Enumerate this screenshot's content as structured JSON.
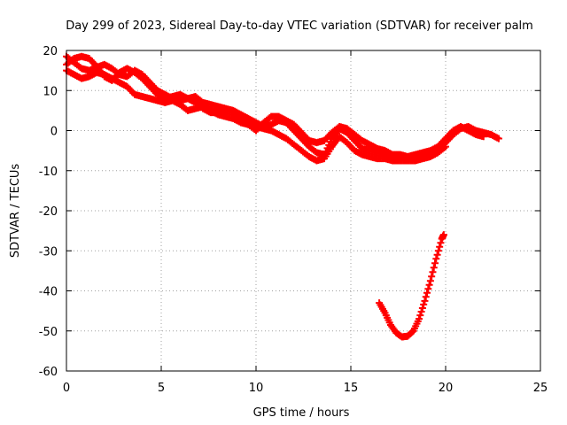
{
  "chart_data": {
    "type": "scatter",
    "title": "Day 299 of 2023, Sidereal Day-to-day VTEC variation (SDTVAR) for receiver palm",
    "xlabel": "GPS time / hours",
    "ylabel": "SDTVAR / TECUs",
    "xlim": [
      0,
      25
    ],
    "ylim": [
      -60,
      20
    ],
    "x_ticks": [
      0,
      5,
      10,
      15,
      20,
      25
    ],
    "y_ticks": [
      -60,
      -50,
      -40,
      -30,
      -20,
      -10,
      0,
      10,
      20
    ],
    "grid": true,
    "marker": "plus",
    "series_color": "#ff0000",
    "series": [
      {
        "name": "track-a",
        "points": [
          [
            0.0,
            18.5
          ],
          [
            0.4,
            17.0
          ],
          [
            0.8,
            15.5
          ],
          [
            1.2,
            15.0
          ],
          [
            1.6,
            15.8
          ],
          [
            2.0,
            16.5
          ],
          [
            2.4,
            15.5
          ],
          [
            2.8,
            14.0
          ],
          [
            3.2,
            13.5
          ],
          [
            3.6,
            15.0
          ],
          [
            4.0,
            14.0
          ],
          [
            4.4,
            12.0
          ],
          [
            4.8,
            10.0
          ],
          [
            5.2,
            9.0
          ],
          [
            5.6,
            8.0
          ],
          [
            6.0,
            7.5
          ],
          [
            6.4,
            8.0
          ],
          [
            6.8,
            8.5
          ],
          [
            7.2,
            7.0
          ],
          [
            7.6,
            6.5
          ],
          [
            8.0,
            6.0
          ],
          [
            8.4,
            5.5
          ],
          [
            8.8,
            5.0
          ],
          [
            9.2,
            4.0
          ],
          [
            9.6,
            3.0
          ],
          [
            10.0,
            2.0
          ],
          [
            10.4,
            1.0
          ],
          [
            10.8,
            1.5
          ],
          [
            11.2,
            2.5
          ],
          [
            11.6,
            2.0
          ],
          [
            12.0,
            0.0
          ],
          [
            12.4,
            -2.0
          ],
          [
            12.8,
            -4.0
          ],
          [
            13.2,
            -5.5
          ],
          [
            13.6,
            -6.0
          ],
          [
            14.0,
            -2.0
          ],
          [
            14.4,
            0.5
          ],
          [
            14.8,
            -0.5
          ],
          [
            15.2,
            -2.5
          ],
          [
            15.6,
            -4.5
          ],
          [
            16.0,
            -5.0
          ],
          [
            16.4,
            -5.5
          ],
          [
            16.8,
            -6.0
          ],
          [
            17.2,
            -6.5
          ],
          [
            17.6,
            -6.5
          ],
          [
            18.0,
            -7.0
          ],
          [
            18.4,
            -7.0
          ],
          [
            18.8,
            -6.5
          ],
          [
            19.2,
            -6.0
          ],
          [
            19.6,
            -5.0
          ],
          [
            20.0,
            -3.0
          ],
          [
            20.4,
            -1.0
          ],
          [
            20.8,
            0.5
          ],
          [
            21.2,
            1.0
          ],
          [
            21.6,
            0.0
          ],
          [
            22.0,
            -0.5
          ],
          [
            22.4,
            -1.0
          ],
          [
            22.8,
            -2.0
          ]
        ]
      },
      {
        "name": "track-b",
        "points": [
          [
            0.0,
            15.0
          ],
          [
            0.4,
            14.0
          ],
          [
            0.8,
            13.0
          ],
          [
            1.2,
            13.5
          ],
          [
            1.6,
            14.5
          ],
          [
            2.0,
            14.0
          ],
          [
            2.4,
            13.0
          ],
          [
            2.8,
            12.0
          ],
          [
            3.2,
            11.0
          ],
          [
            3.6,
            9.0
          ],
          [
            4.0,
            8.5
          ],
          [
            4.4,
            8.0
          ],
          [
            4.8,
            7.5
          ],
          [
            5.2,
            7.0
          ],
          [
            5.6,
            7.5
          ],
          [
            6.0,
            6.5
          ],
          [
            6.4,
            5.0
          ],
          [
            6.8,
            5.5
          ],
          [
            7.2,
            6.0
          ],
          [
            7.6,
            5.0
          ],
          [
            8.0,
            4.0
          ],
          [
            8.4,
            3.5
          ],
          [
            8.8,
            3.0
          ],
          [
            9.2,
            2.0
          ],
          [
            9.6,
            1.5
          ],
          [
            10.0,
            1.0
          ],
          [
            10.4,
            0.5
          ],
          [
            10.8,
            0.0
          ],
          [
            11.2,
            -1.0
          ],
          [
            11.6,
            -2.0
          ],
          [
            12.0,
            -3.5
          ],
          [
            12.4,
            -5.0
          ],
          [
            12.8,
            -6.5
          ],
          [
            13.2,
            -7.5
          ],
          [
            13.6,
            -7.0
          ],
          [
            14.0,
            -4.0
          ],
          [
            14.4,
            -1.5
          ],
          [
            14.8,
            -3.0
          ],
          [
            15.2,
            -5.0
          ],
          [
            15.6,
            -6.0
          ],
          [
            16.0,
            -6.5
          ],
          [
            16.4,
            -7.0
          ],
          [
            16.8,
            -7.0
          ],
          [
            17.2,
            -7.5
          ],
          [
            17.6,
            -7.5
          ],
          [
            18.0,
            -7.5
          ],
          [
            18.4,
            -7.5
          ],
          [
            18.8,
            -7.0
          ],
          [
            19.2,
            -6.5
          ],
          [
            19.6,
            -5.5
          ],
          [
            20.0,
            -4.0
          ]
        ]
      },
      {
        "name": "track-c",
        "points": [
          [
            0.0,
            16.5
          ],
          [
            0.4,
            18.0
          ],
          [
            0.8,
            18.5
          ],
          [
            1.2,
            18.0
          ],
          [
            1.6,
            16.0
          ],
          [
            2.0,
            13.5
          ],
          [
            2.4,
            12.5
          ],
          [
            2.8,
            14.5
          ],
          [
            3.2,
            15.5
          ],
          [
            3.6,
            14.5
          ],
          [
            4.0,
            13.0
          ],
          [
            4.4,
            11.0
          ],
          [
            4.8,
            9.0
          ],
          [
            5.2,
            8.0
          ],
          [
            5.6,
            8.5
          ],
          [
            6.0,
            9.0
          ],
          [
            6.4,
            8.0
          ],
          [
            6.8,
            7.0
          ],
          [
            7.2,
            5.5
          ],
          [
            7.6,
            4.5
          ],
          [
            8.0,
            4.5
          ],
          [
            8.4,
            5.0
          ],
          [
            8.8,
            4.5
          ],
          [
            9.2,
            3.0
          ],
          [
            9.6,
            1.5
          ],
          [
            10.0,
            0.0
          ],
          [
            10.4,
            2.0
          ],
          [
            10.8,
            3.5
          ],
          [
            11.2,
            3.5
          ],
          [
            11.6,
            2.5
          ],
          [
            12.0,
            1.5
          ],
          [
            12.4,
            -0.5
          ],
          [
            12.8,
            -2.5
          ],
          [
            13.2,
            -3.0
          ],
          [
            13.6,
            -2.5
          ],
          [
            14.0,
            -0.5
          ],
          [
            14.4,
            1.0
          ],
          [
            14.8,
            0.5
          ],
          [
            15.2,
            -1.0
          ],
          [
            15.6,
            -2.5
          ],
          [
            16.0,
            -3.5
          ],
          [
            16.4,
            -4.5
          ],
          [
            16.8,
            -5.0
          ],
          [
            17.2,
            -6.0
          ],
          [
            17.6,
            -6.0
          ],
          [
            18.0,
            -6.5
          ],
          [
            18.4,
            -6.0
          ],
          [
            18.8,
            -5.5
          ],
          [
            19.2,
            -5.0
          ],
          [
            19.6,
            -4.0
          ],
          [
            20.0,
            -2.0
          ],
          [
            20.4,
            0.0
          ],
          [
            20.8,
            1.0
          ],
          [
            21.2,
            0.0
          ],
          [
            21.6,
            -1.0
          ],
          [
            22.0,
            -1.5
          ]
        ]
      },
      {
        "name": "track-d",
        "points": [
          [
            16.5,
            -43.0
          ],
          [
            16.8,
            -45.5
          ],
          [
            17.1,
            -48.5
          ],
          [
            17.4,
            -50.5
          ],
          [
            17.7,
            -51.5
          ],
          [
            18.0,
            -51.3
          ],
          [
            18.3,
            -50.0
          ],
          [
            18.6,
            -47.0
          ],
          [
            18.9,
            -42.5
          ],
          [
            19.2,
            -37.5
          ],
          [
            19.5,
            -32.0
          ],
          [
            19.8,
            -27.0
          ],
          [
            19.9,
            -26.0
          ]
        ]
      }
    ]
  }
}
